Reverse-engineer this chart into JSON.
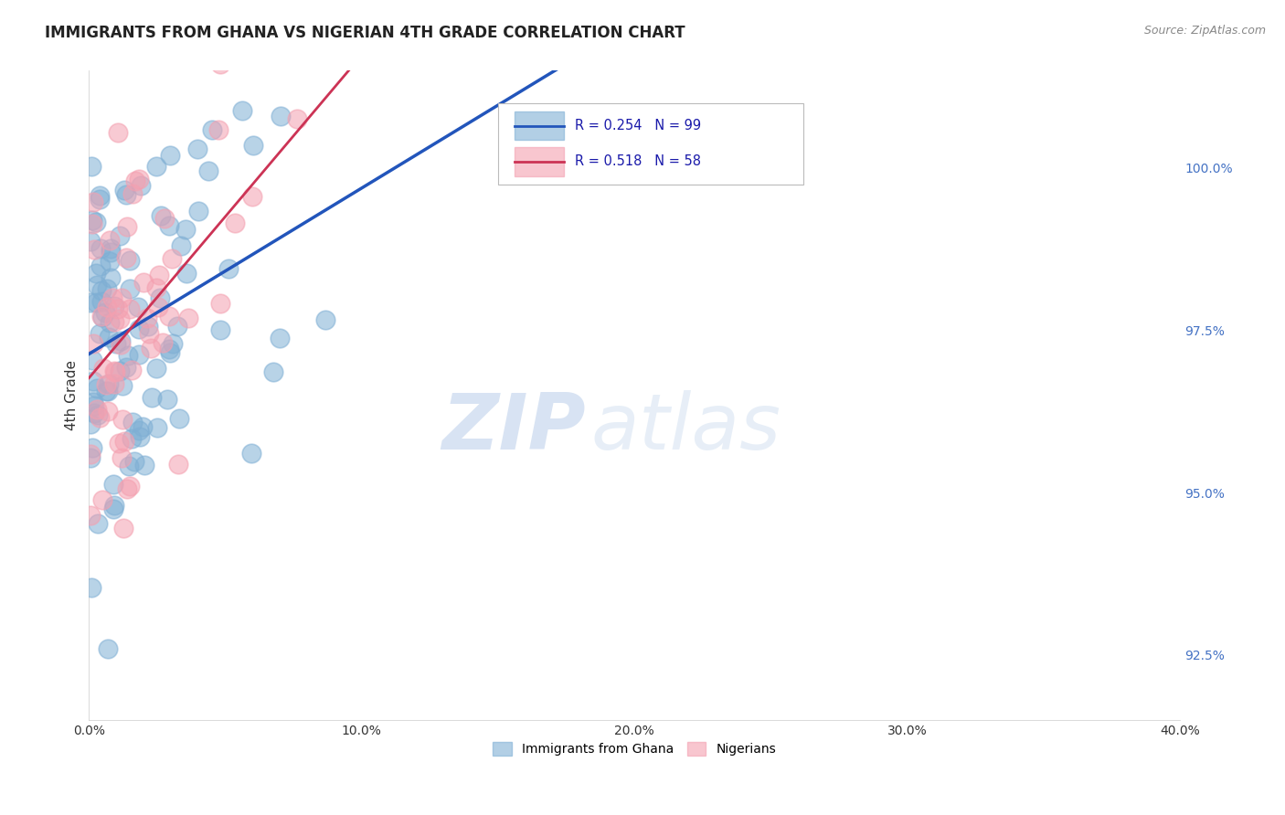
{
  "title": "IMMIGRANTS FROM GHANA VS NIGERIAN 4TH GRADE CORRELATION CHART",
  "source": "Source: ZipAtlas.com",
  "ylabel": "4th Grade",
  "xlim": [
    0.0,
    0.4
  ],
  "ylim": [
    91.5,
    101.5
  ],
  "ytick_labels": [
    "92.5%",
    "95.0%",
    "97.5%",
    "100.0%"
  ],
  "ytick_values": [
    92.5,
    95.0,
    97.5,
    100.0
  ],
  "xtick_labels": [
    "0.0%",
    "10.0%",
    "20.0%",
    "30.0%",
    "40.0%"
  ],
  "xtick_values": [
    0.0,
    0.1,
    0.2,
    0.3,
    0.4
  ],
  "ghana_color": "#7fafd4",
  "nigeria_color": "#f4a0b0",
  "ghana_line_color": "#2255bb",
  "nigeria_line_color": "#cc3355",
  "legend_ghana": "Immigrants from Ghana",
  "legend_nigeria": "Nigerians",
  "ghana_R": "0.254",
  "ghana_N": "99",
  "nigeria_R": "0.518",
  "nigeria_N": "58",
  "watermark_zip": "ZIP",
  "watermark_atlas": "atlas",
  "background_color": "#ffffff",
  "grid_color": "#cccccc",
  "legend_text_color": "#1a1aaa"
}
